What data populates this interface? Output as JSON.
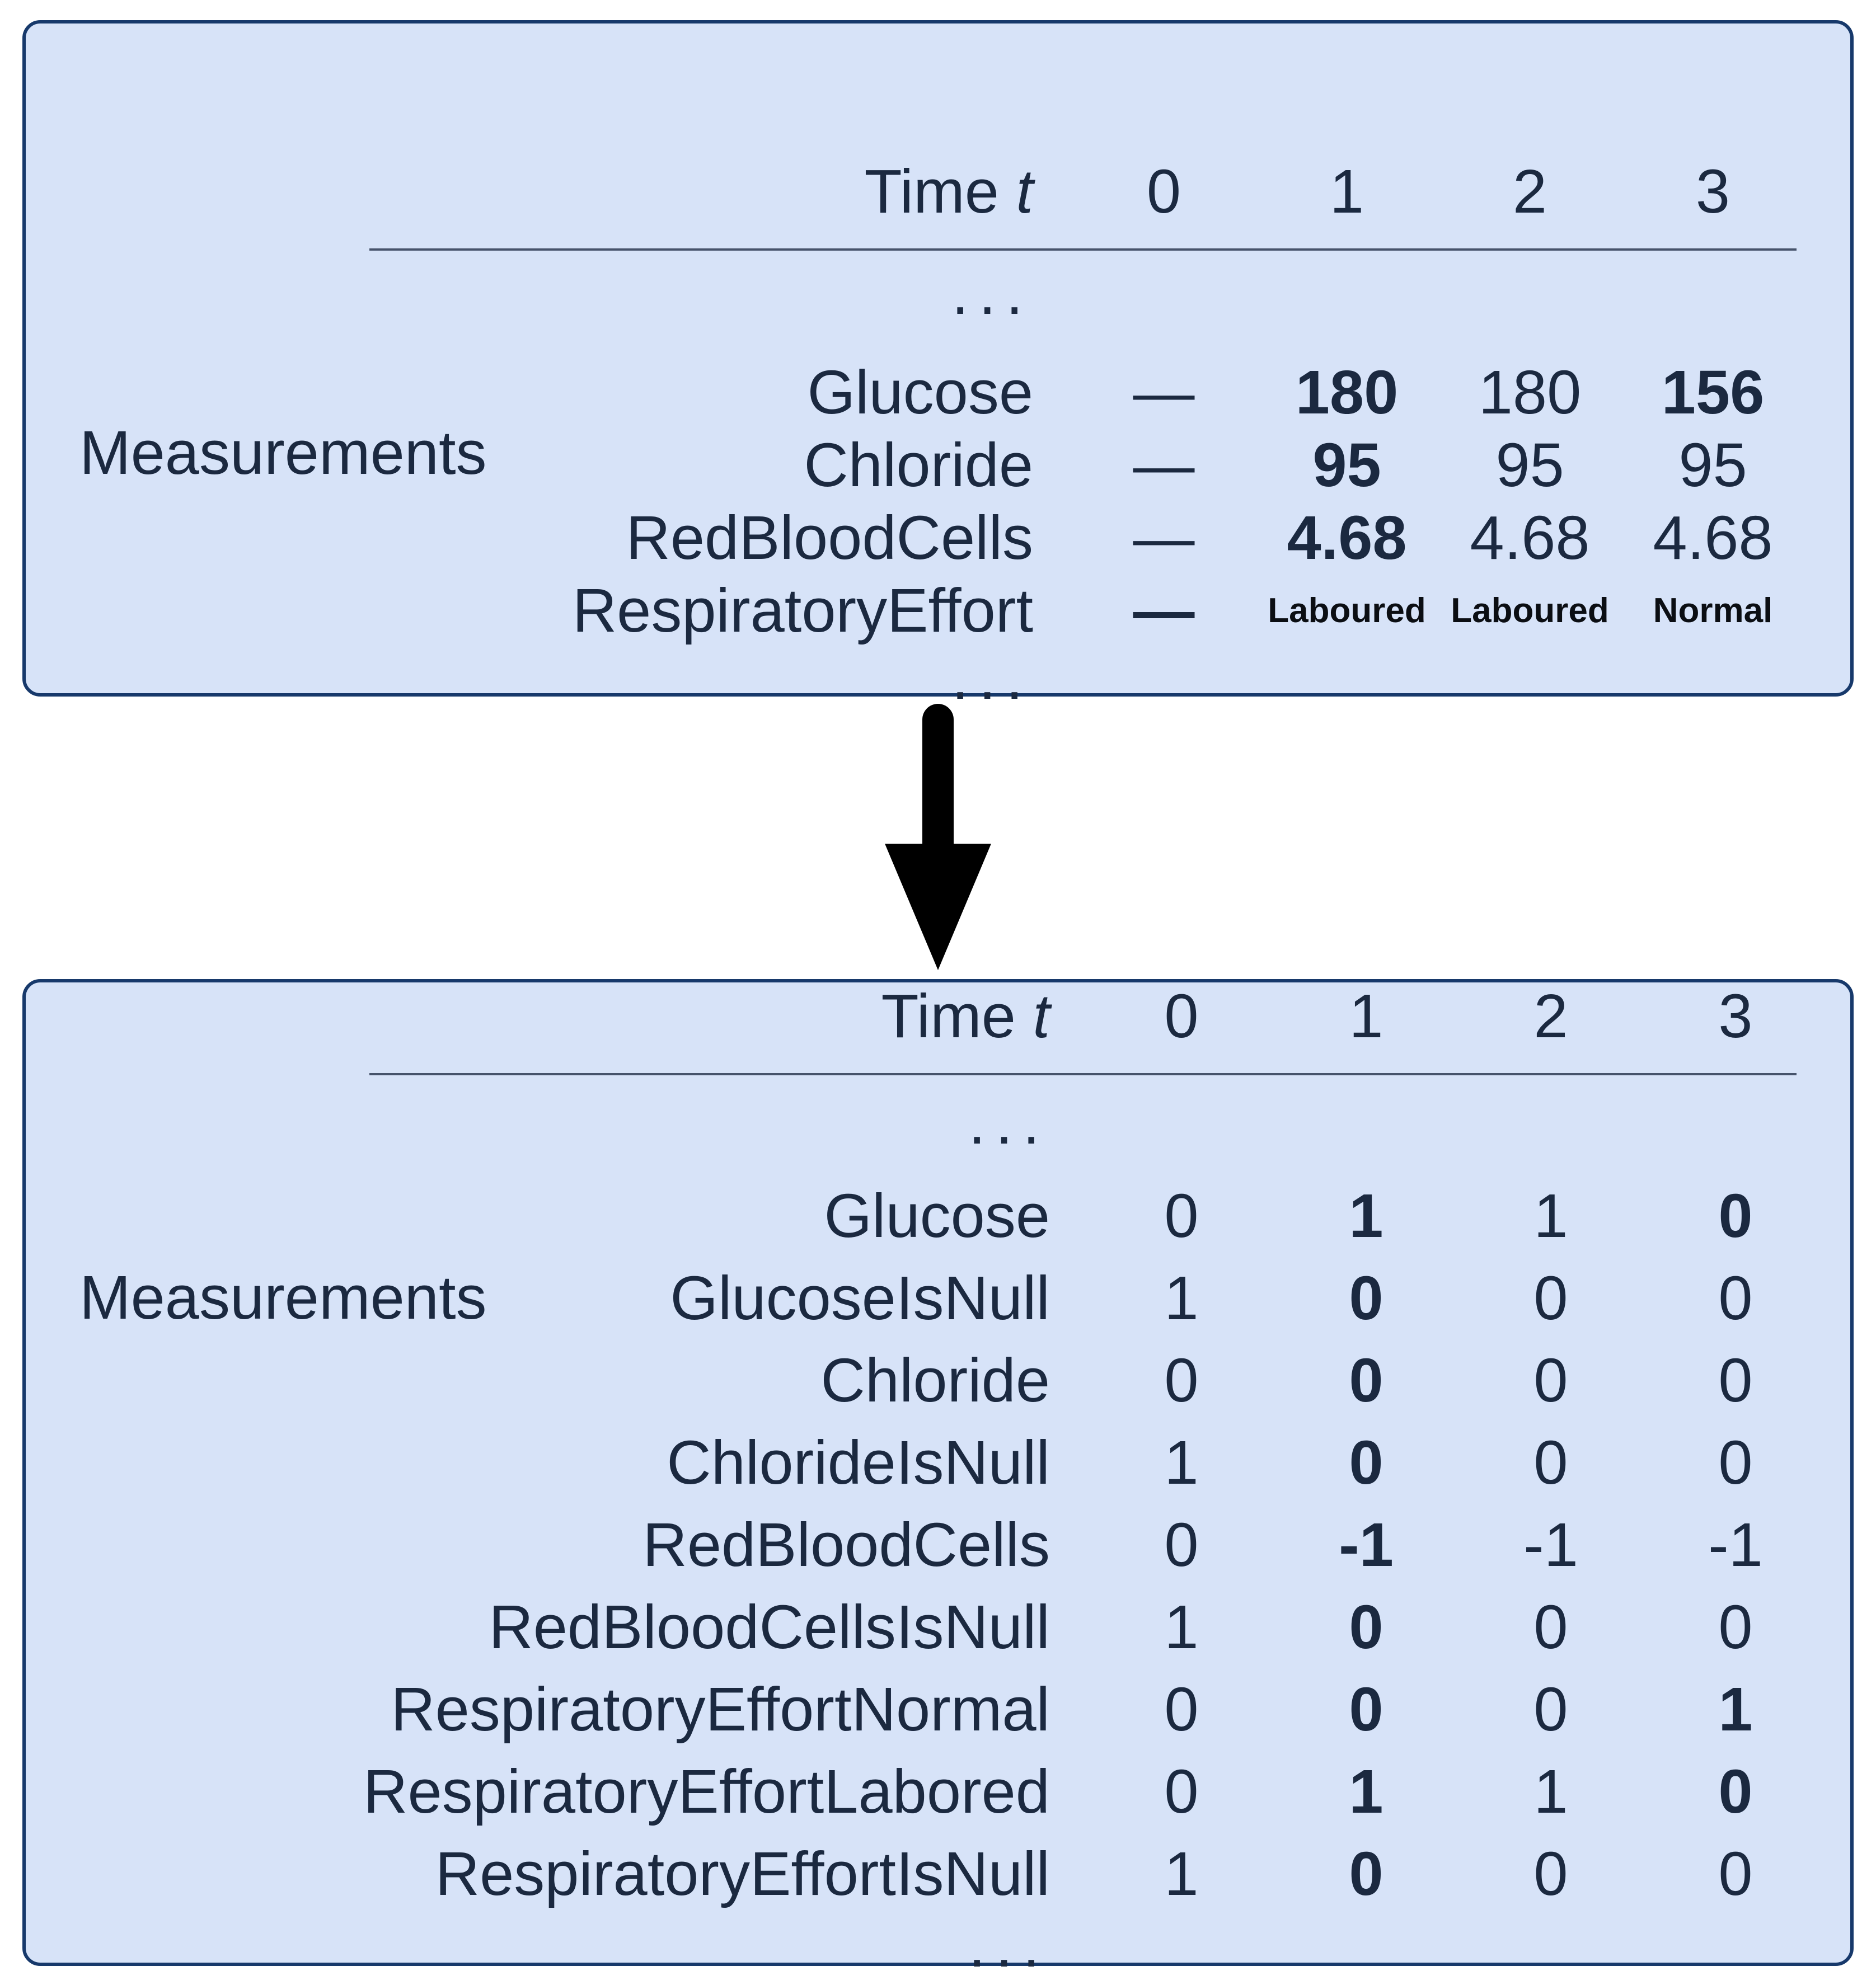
{
  "colors": {
    "panel_fill": "#d7e3f8",
    "panel_border": "#17396b",
    "text": "#1b2940",
    "text_black": "#0b0e13",
    "rule": "#46536b",
    "arrow": "#000000",
    "background": "#ffffff"
  },
  "raw_table": {
    "side_label": "Measurements",
    "header": {
      "time_label": "Time",
      "time_symbol": "t",
      "columns": [
        "0",
        "1",
        "2",
        "3"
      ]
    },
    "ellipsis": "...",
    "rows": [
      {
        "label": "Glucose",
        "cells": [
          {
            "t": "—"
          },
          {
            "t": "180",
            "b": true
          },
          {
            "t": "180"
          },
          {
            "t": "156",
            "b": true
          }
        ]
      },
      {
        "label": "Chloride",
        "cells": [
          {
            "t": "—"
          },
          {
            "t": "95",
            "b": true
          },
          {
            "t": "95"
          },
          {
            "t": "95"
          }
        ]
      },
      {
        "label": "RedBloodCells",
        "cells": [
          {
            "t": "—"
          },
          {
            "t": "4.68",
            "b": true
          },
          {
            "t": "4.68"
          },
          {
            "t": "4.68"
          }
        ]
      },
      {
        "label": "RespiratoryEffort",
        "cells": [
          {
            "t": "—",
            "b": true
          },
          {
            "t": "Laboured",
            "small": true
          },
          {
            "t": "Laboured",
            "small": true
          },
          {
            "t": "Normal",
            "small": true
          }
        ]
      }
    ]
  },
  "encoded_table": {
    "side_label": "Measurements",
    "header": {
      "time_label": "Time",
      "time_symbol": "t",
      "columns": [
        "0",
        "1",
        "2",
        "3"
      ]
    },
    "ellipsis": "...",
    "rows": [
      {
        "label": "Glucose",
        "cells": [
          {
            "t": "0"
          },
          {
            "t": "1",
            "b": true
          },
          {
            "t": "1"
          },
          {
            "t": "0",
            "b": true
          }
        ]
      },
      {
        "label": "GlucoseIsNull",
        "cells": [
          {
            "t": "1"
          },
          {
            "t": "0",
            "b": true
          },
          {
            "t": "0"
          },
          {
            "t": "0"
          }
        ]
      },
      {
        "label": "Chloride",
        "cells": [
          {
            "t": "0"
          },
          {
            "t": "0",
            "b": true
          },
          {
            "t": "0"
          },
          {
            "t": "0"
          }
        ]
      },
      {
        "label": "ChlorideIsNull",
        "cells": [
          {
            "t": "1"
          },
          {
            "t": "0",
            "b": true
          },
          {
            "t": "0"
          },
          {
            "t": "0"
          }
        ]
      },
      {
        "label": "RedBloodCells",
        "cells": [
          {
            "t": "0"
          },
          {
            "t": "-1",
            "b": true
          },
          {
            "t": "-1"
          },
          {
            "t": "-1"
          }
        ]
      },
      {
        "label": "RedBloodCellsIsNull",
        "cells": [
          {
            "t": "1"
          },
          {
            "t": "0",
            "b": true
          },
          {
            "t": "0"
          },
          {
            "t": "0"
          }
        ]
      },
      {
        "label": "RespiratoryEffortNormal",
        "cells": [
          {
            "t": "0"
          },
          {
            "t": "0",
            "b": true
          },
          {
            "t": "0"
          },
          {
            "t": "1",
            "b": true
          }
        ]
      },
      {
        "label": "RespiratoryEffortLabored",
        "cells": [
          {
            "t": "0"
          },
          {
            "t": "1",
            "b": true
          },
          {
            "t": "1"
          },
          {
            "t": "0",
            "b": true
          }
        ]
      },
      {
        "label": "RespiratoryEffortIsNull",
        "cells": [
          {
            "t": "1"
          },
          {
            "t": "0",
            "b": true
          },
          {
            "t": "0"
          },
          {
            "t": "0"
          }
        ]
      }
    ]
  },
  "arrow": {
    "name": "transform-arrow",
    "direction": "down"
  }
}
